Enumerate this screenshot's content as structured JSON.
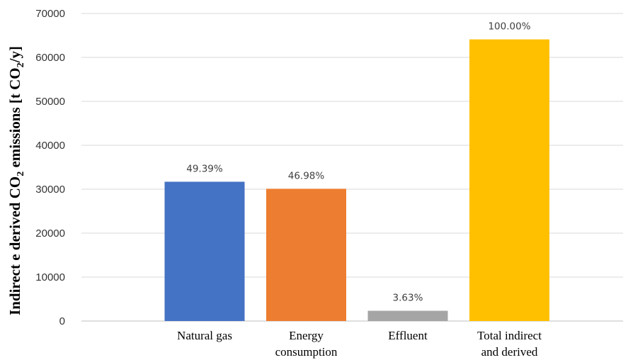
{
  "chart_data": {
    "type": "bar",
    "title": "",
    "xlabel": "",
    "ylabel_parts": {
      "main": "Indirect e derived CO",
      "sub2": "2",
      "mid": " emissions [t CO",
      "sub2b": "2",
      "end": "/y]"
    },
    "ylim": [
      0,
      70000
    ],
    "yticks": [
      "0",
      "10000",
      "20000",
      "30000",
      "40000",
      "50000",
      "60000",
      "70000"
    ],
    "categories": [
      [
        "Natural gas"
      ],
      [
        "Energy",
        "consumption"
      ],
      [
        "Effluent"
      ],
      [
        "Total indirect",
        "and derived"
      ]
    ],
    "values": [
      31700,
      30100,
      2330,
      64100
    ],
    "data_labels": [
      "49.39%",
      "46.98%",
      "3.63%",
      "100.00%"
    ],
    "colors": [
      "#4472c4",
      "#ed7d31",
      "#a5a5a5",
      "#ffc000"
    ],
    "grid": true,
    "legend": "none"
  }
}
